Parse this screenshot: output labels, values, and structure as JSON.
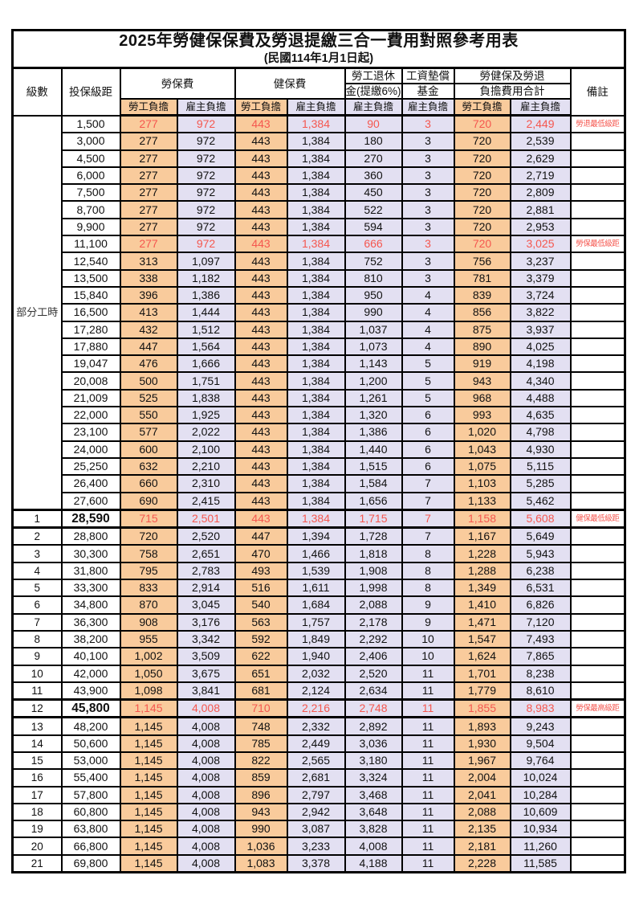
{
  "title": "2025年勞健保保費及勞退提繳三合一費用對照參考用表",
  "subtitle": "(民國114年1月1日起)",
  "header": {
    "level": "級數",
    "bracket": "投保級距",
    "labor_ins": "勞保費",
    "health_ins": "健保費",
    "pension_line1": "勞工退休",
    "pension_line2": "金(提繳6%)",
    "wage_fund_line1": "工資墊償",
    "wage_fund_line2": "基金",
    "total_line1": "勞健保及勞退",
    "total_line2": "負擔費用合計",
    "note": "備註",
    "employee": "勞工負擔",
    "employer": "雇主負擔"
  },
  "part_time_label": "部分工時",
  "part_time_rows": 23,
  "colors": {
    "employee_bg": "#F9CB9C",
    "employer_bg": "#E3E0F2",
    "highlight_red": "#F5574F"
  },
  "rows": [
    {
      "level": "",
      "bracket": "1,500",
      "vals": [
        "277",
        "972",
        "443",
        "1,384",
        "90",
        "3",
        "720",
        "2,449"
      ],
      "note": "勞退最低級距",
      "red": true
    },
    {
      "level": "",
      "bracket": "3,000",
      "vals": [
        "277",
        "972",
        "443",
        "1,384",
        "180",
        "3",
        "720",
        "2,539"
      ],
      "note": ""
    },
    {
      "level": "",
      "bracket": "4,500",
      "vals": [
        "277",
        "972",
        "443",
        "1,384",
        "270",
        "3",
        "720",
        "2,629"
      ],
      "note": ""
    },
    {
      "level": "",
      "bracket": "6,000",
      "vals": [
        "277",
        "972",
        "443",
        "1,384",
        "360",
        "3",
        "720",
        "2,719"
      ],
      "note": ""
    },
    {
      "level": "",
      "bracket": "7,500",
      "vals": [
        "277",
        "972",
        "443",
        "1,384",
        "450",
        "3",
        "720",
        "2,809"
      ],
      "note": ""
    },
    {
      "level": "",
      "bracket": "8,700",
      "vals": [
        "277",
        "972",
        "443",
        "1,384",
        "522",
        "3",
        "720",
        "2,881"
      ],
      "note": ""
    },
    {
      "level": "",
      "bracket": "9,900",
      "vals": [
        "277",
        "972",
        "443",
        "1,384",
        "594",
        "3",
        "720",
        "2,953"
      ],
      "note": ""
    },
    {
      "level": "",
      "bracket": "11,100",
      "vals": [
        "277",
        "972",
        "443",
        "1,384",
        "666",
        "3",
        "720",
        "3,025"
      ],
      "note": "勞保最低級距",
      "red": true
    },
    {
      "level": "",
      "bracket": "12,540",
      "vals": [
        "313",
        "1,097",
        "443",
        "1,384",
        "752",
        "3",
        "756",
        "3,237"
      ],
      "note": ""
    },
    {
      "level": "",
      "bracket": "13,500",
      "vals": [
        "338",
        "1,182",
        "443",
        "1,384",
        "810",
        "3",
        "781",
        "3,379"
      ],
      "note": ""
    },
    {
      "level": "",
      "bracket": "15,840",
      "vals": [
        "396",
        "1,386",
        "443",
        "1,384",
        "950",
        "4",
        "839",
        "3,724"
      ],
      "note": ""
    },
    {
      "level": "",
      "bracket": "16,500",
      "vals": [
        "413",
        "1,444",
        "443",
        "1,384",
        "990",
        "4",
        "856",
        "3,822"
      ],
      "note": ""
    },
    {
      "level": "",
      "bracket": "17,280",
      "vals": [
        "432",
        "1,512",
        "443",
        "1,384",
        "1,037",
        "4",
        "875",
        "3,937"
      ],
      "note": ""
    },
    {
      "level": "",
      "bracket": "17,880",
      "vals": [
        "447",
        "1,564",
        "443",
        "1,384",
        "1,073",
        "4",
        "890",
        "4,025"
      ],
      "note": ""
    },
    {
      "level": "",
      "bracket": "19,047",
      "vals": [
        "476",
        "1,666",
        "443",
        "1,384",
        "1,143",
        "5",
        "919",
        "4,198"
      ],
      "note": ""
    },
    {
      "level": "",
      "bracket": "20,008",
      "vals": [
        "500",
        "1,751",
        "443",
        "1,384",
        "1,200",
        "5",
        "943",
        "4,340"
      ],
      "note": ""
    },
    {
      "level": "",
      "bracket": "21,009",
      "vals": [
        "525",
        "1,838",
        "443",
        "1,384",
        "1,261",
        "5",
        "968",
        "4,488"
      ],
      "note": ""
    },
    {
      "level": "",
      "bracket": "22,000",
      "vals": [
        "550",
        "1,925",
        "443",
        "1,384",
        "1,320",
        "6",
        "993",
        "4,635"
      ],
      "note": ""
    },
    {
      "level": "",
      "bracket": "23,100",
      "vals": [
        "577",
        "2,022",
        "443",
        "1,384",
        "1,386",
        "6",
        "1,020",
        "4,798"
      ],
      "note": ""
    },
    {
      "level": "",
      "bracket": "24,000",
      "vals": [
        "600",
        "2,100",
        "443",
        "1,384",
        "1,440",
        "6",
        "1,043",
        "4,930"
      ],
      "note": ""
    },
    {
      "level": "",
      "bracket": "25,250",
      "vals": [
        "632",
        "2,210",
        "443",
        "1,384",
        "1,515",
        "6",
        "1,075",
        "5,115"
      ],
      "note": ""
    },
    {
      "level": "",
      "bracket": "26,400",
      "vals": [
        "660",
        "2,310",
        "443",
        "1,384",
        "1,584",
        "7",
        "1,103",
        "5,285"
      ],
      "note": ""
    },
    {
      "level": "",
      "bracket": "27,600",
      "vals": [
        "690",
        "2,415",
        "443",
        "1,384",
        "1,656",
        "7",
        "1,133",
        "5,462"
      ],
      "note": ""
    },
    {
      "level": "1",
      "bracket": "28,590",
      "vals": [
        "715",
        "2,501",
        "443",
        "1,384",
        "1,715",
        "7",
        "1,158",
        "5,608"
      ],
      "note": "健保最低級距",
      "red": true,
      "emph": true
    },
    {
      "level": "2",
      "bracket": "28,800",
      "vals": [
        "720",
        "2,520",
        "447",
        "1,394",
        "1,728",
        "7",
        "1,167",
        "5,649"
      ],
      "note": ""
    },
    {
      "level": "3",
      "bracket": "30,300",
      "vals": [
        "758",
        "2,651",
        "470",
        "1,466",
        "1,818",
        "8",
        "1,228",
        "5,943"
      ],
      "note": ""
    },
    {
      "level": "4",
      "bracket": "31,800",
      "vals": [
        "795",
        "2,783",
        "493",
        "1,539",
        "1,908",
        "8",
        "1,288",
        "6,238"
      ],
      "note": ""
    },
    {
      "level": "5",
      "bracket": "33,300",
      "vals": [
        "833",
        "2,914",
        "516",
        "1,611",
        "1,998",
        "8",
        "1,349",
        "6,531"
      ],
      "note": ""
    },
    {
      "level": "6",
      "bracket": "34,800",
      "vals": [
        "870",
        "3,045",
        "540",
        "1,684",
        "2,088",
        "9",
        "1,410",
        "6,826"
      ],
      "note": ""
    },
    {
      "level": "7",
      "bracket": "36,300",
      "vals": [
        "908",
        "3,176",
        "563",
        "1,757",
        "2,178",
        "9",
        "1,471",
        "7,120"
      ],
      "note": ""
    },
    {
      "level": "8",
      "bracket": "38,200",
      "vals": [
        "955",
        "3,342",
        "592",
        "1,849",
        "2,292",
        "10",
        "1,547",
        "7,493"
      ],
      "note": ""
    },
    {
      "level": "9",
      "bracket": "40,100",
      "vals": [
        "1,002",
        "3,509",
        "622",
        "1,940",
        "2,406",
        "10",
        "1,624",
        "7,865"
      ],
      "note": ""
    },
    {
      "level": "10",
      "bracket": "42,000",
      "vals": [
        "1,050",
        "3,675",
        "651",
        "2,032",
        "2,520",
        "11",
        "1,701",
        "8,238"
      ],
      "note": ""
    },
    {
      "level": "11",
      "bracket": "43,900",
      "vals": [
        "1,098",
        "3,841",
        "681",
        "2,124",
        "2,634",
        "11",
        "1,779",
        "8,610"
      ],
      "note": ""
    },
    {
      "level": "12",
      "bracket": "45,800",
      "vals": [
        "1,145",
        "4,008",
        "710",
        "2,216",
        "2,748",
        "11",
        "1,855",
        "8,983"
      ],
      "note": "勞保最高級距",
      "red": true,
      "emph": true
    },
    {
      "level": "13",
      "bracket": "48,200",
      "vals": [
        "1,145",
        "4,008",
        "748",
        "2,332",
        "2,892",
        "11",
        "1,893",
        "9,243"
      ],
      "note": ""
    },
    {
      "level": "14",
      "bracket": "50,600",
      "vals": [
        "1,145",
        "4,008",
        "785",
        "2,449",
        "3,036",
        "11",
        "1,930",
        "9,504"
      ],
      "note": ""
    },
    {
      "level": "15",
      "bracket": "53,000",
      "vals": [
        "1,145",
        "4,008",
        "822",
        "2,565",
        "3,180",
        "11",
        "1,967",
        "9,764"
      ],
      "note": ""
    },
    {
      "level": "16",
      "bracket": "55,400",
      "vals": [
        "1,145",
        "4,008",
        "859",
        "2,681",
        "3,324",
        "11",
        "2,004",
        "10,024"
      ],
      "note": ""
    },
    {
      "level": "17",
      "bracket": "57,800",
      "vals": [
        "1,145",
        "4,008",
        "896",
        "2,797",
        "3,468",
        "11",
        "2,041",
        "10,284"
      ],
      "note": ""
    },
    {
      "level": "18",
      "bracket": "60,800",
      "vals": [
        "1,145",
        "4,008",
        "943",
        "2,942",
        "3,648",
        "11",
        "2,088",
        "10,609"
      ],
      "note": ""
    },
    {
      "level": "19",
      "bracket": "63,800",
      "vals": [
        "1,145",
        "4,008",
        "990",
        "3,087",
        "3,828",
        "11",
        "2,135",
        "10,934"
      ],
      "note": ""
    },
    {
      "level": "20",
      "bracket": "66,800",
      "vals": [
        "1,145",
        "4,008",
        "1,036",
        "3,233",
        "4,008",
        "11",
        "2,181",
        "11,260"
      ],
      "note": ""
    },
    {
      "level": "21",
      "bracket": "69,800",
      "vals": [
        "1,145",
        "4,008",
        "1,083",
        "3,378",
        "4,188",
        "11",
        "2,228",
        "11,585"
      ],
      "note": ""
    }
  ]
}
